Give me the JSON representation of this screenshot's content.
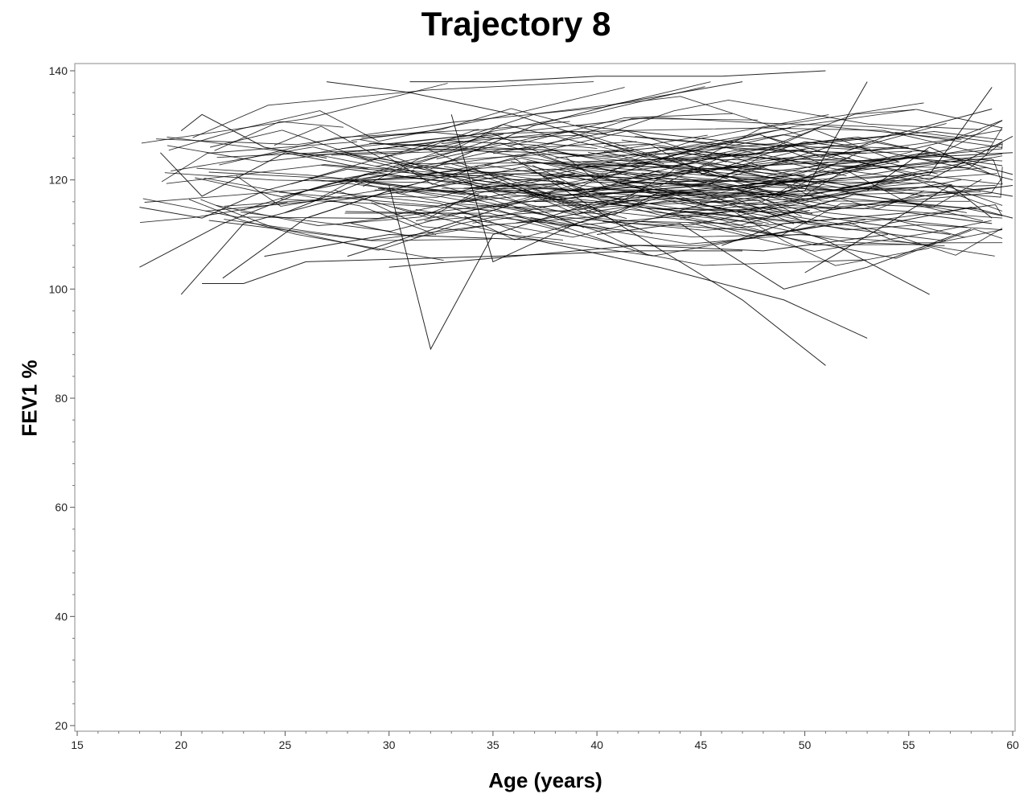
{
  "chart_data": {
    "type": "line",
    "title": "Trajectory 8",
    "xlabel": "Age (years)",
    "ylabel": "FEV1 %",
    "xlim": [
      15,
      60
    ],
    "ylim": [
      20,
      140
    ],
    "x_ticks": [
      15,
      20,
      25,
      30,
      35,
      40,
      45,
      50,
      55,
      60
    ],
    "y_ticks": [
      20,
      40,
      60,
      80,
      100,
      120,
      140
    ],
    "grid": false,
    "legend": "none",
    "line_color": "#000000",
    "series_count_estimate": 200,
    "series": [
      {
        "x": [
          18,
          22,
          26,
          30,
          34
        ],
        "y": [
          104,
          112,
          118,
          121,
          119
        ]
      },
      {
        "x": [
          18,
          21,
          24,
          28,
          32
        ],
        "y": [
          115,
          113,
          118,
          122,
          120
        ]
      },
      {
        "x": [
          19,
          21,
          23,
          25,
          29
        ],
        "y": [
          125,
          117,
          121,
          125,
          122
        ]
      },
      {
        "x": [
          20,
          21,
          24,
          27
        ],
        "y": [
          129,
          132,
          126,
          124
        ]
      },
      {
        "x": [
          20,
          23,
          27,
          31,
          36
        ],
        "y": [
          99,
          112,
          116,
          118,
          121
        ]
      },
      {
        "x": [
          21,
          23,
          26,
          35,
          42,
          47
        ],
        "y": [
          101,
          101,
          105,
          106,
          107,
          107
        ]
      },
      {
        "x": [
          22,
          26,
          30,
          34
        ],
        "y": [
          102,
          113,
          118,
          122
        ]
      },
      {
        "x": [
          24,
          30,
          37,
          43,
          49,
          53
        ],
        "y": [
          106,
          110,
          109,
          104,
          98,
          91
        ]
      },
      {
        "x": [
          25,
          29,
          33,
          38,
          43,
          51
        ],
        "y": [
          114,
          120,
          121,
          122,
          118,
          117
        ]
      },
      {
        "x": [
          27,
          31,
          36,
          41,
          47
        ],
        "y": [
          138,
          136,
          132,
          126,
          120
        ]
      },
      {
        "x": [
          28,
          33,
          38,
          44,
          50
        ],
        "y": [
          106,
          112,
          118,
          119,
          121
        ]
      },
      {
        "x": [
          30,
          32,
          35,
          40,
          45
        ],
        "y": [
          119,
          89,
          110,
          116,
          118
        ]
      },
      {
        "x": [
          30,
          36,
          42,
          48,
          54
        ],
        "y": [
          104,
          106,
          108,
          107,
          110
        ]
      },
      {
        "x": [
          31,
          35,
          40,
          46,
          51
        ],
        "y": [
          138,
          138,
          139,
          139,
          140
        ]
      },
      {
        "x": [
          32,
          37,
          41,
          47
        ],
        "y": [
          122,
          130,
          134,
          138
        ]
      },
      {
        "x": [
          33,
          35,
          39,
          44,
          50
        ],
        "y": [
          132,
          105,
          112,
          118,
          120
        ]
      },
      {
        "x": [
          34,
          39,
          44,
          49,
          55
        ],
        "y": [
          120,
          118,
          121,
          124,
          126
        ]
      },
      {
        "x": [
          35,
          40,
          45,
          50,
          55
        ],
        "y": [
          115,
          118,
          120,
          117,
          121
        ]
      },
      {
        "x": [
          36,
          41,
          47,
          51
        ],
        "y": [
          124,
          112,
          98,
          86
        ]
      },
      {
        "x": [
          37,
          42,
          47,
          51,
          56
        ],
        "y": [
          116,
          118,
          114,
          109,
          99
        ]
      },
      {
        "x": [
          38,
          43,
          48,
          53,
          59
        ],
        "y": [
          124,
          126,
          124,
          122,
          124
        ]
      },
      {
        "x": [
          39,
          44,
          49,
          54,
          59
        ],
        "y": [
          130,
          128,
          126,
          128,
          133
        ]
      },
      {
        "x": [
          40,
          44,
          49,
          53,
          58
        ],
        "y": [
          110,
          112,
          100,
          104,
          111
        ]
      },
      {
        "x": [
          41,
          45,
          50,
          55,
          60
        ],
        "y": [
          120,
          122,
          123,
          124,
          125
        ]
      },
      {
        "x": [
          42,
          46,
          50,
          53
        ],
        "y": [
          117,
          116,
          118,
          138
        ]
      },
      {
        "x": [
          43,
          48,
          52,
          56,
          60
        ],
        "y": [
          126,
          122,
          119,
          117,
          119
        ]
      },
      {
        "x": [
          44,
          48,
          53,
          57
        ],
        "y": [
          113,
          115,
          112,
          110
        ]
      },
      {
        "x": [
          45,
          50,
          54,
          58,
          60
        ],
        "y": [
          121,
          127,
          125,
          122,
          120
        ]
      },
      {
        "x": [
          46,
          49,
          55,
          59
        ],
        "y": [
          108,
          112,
          114,
          112
        ]
      },
      {
        "x": [
          47,
          52,
          56,
          59
        ],
        "y": [
          119,
          118,
          121,
          137
        ]
      },
      {
        "x": [
          48,
          53,
          56,
          60
        ],
        "y": [
          128,
          123,
          120,
          128
        ]
      },
      {
        "x": [
          49,
          53,
          57,
          60
        ],
        "y": [
          116,
          118,
          119,
          117
        ]
      },
      {
        "x": [
          50,
          54,
          58,
          60
        ],
        "y": [
          103,
          112,
          115,
          113
        ]
      },
      {
        "x": [
          52,
          55,
          58,
          60
        ],
        "y": [
          122,
          124,
          123,
          121
        ]
      },
      {
        "x": [
          53,
          56,
          59
        ],
        "y": [
          118,
          126,
          121
        ]
      },
      {
        "x": [
          54,
          57,
          59
        ],
        "y": [
          112,
          119,
          113
        ]
      }
    ]
  }
}
